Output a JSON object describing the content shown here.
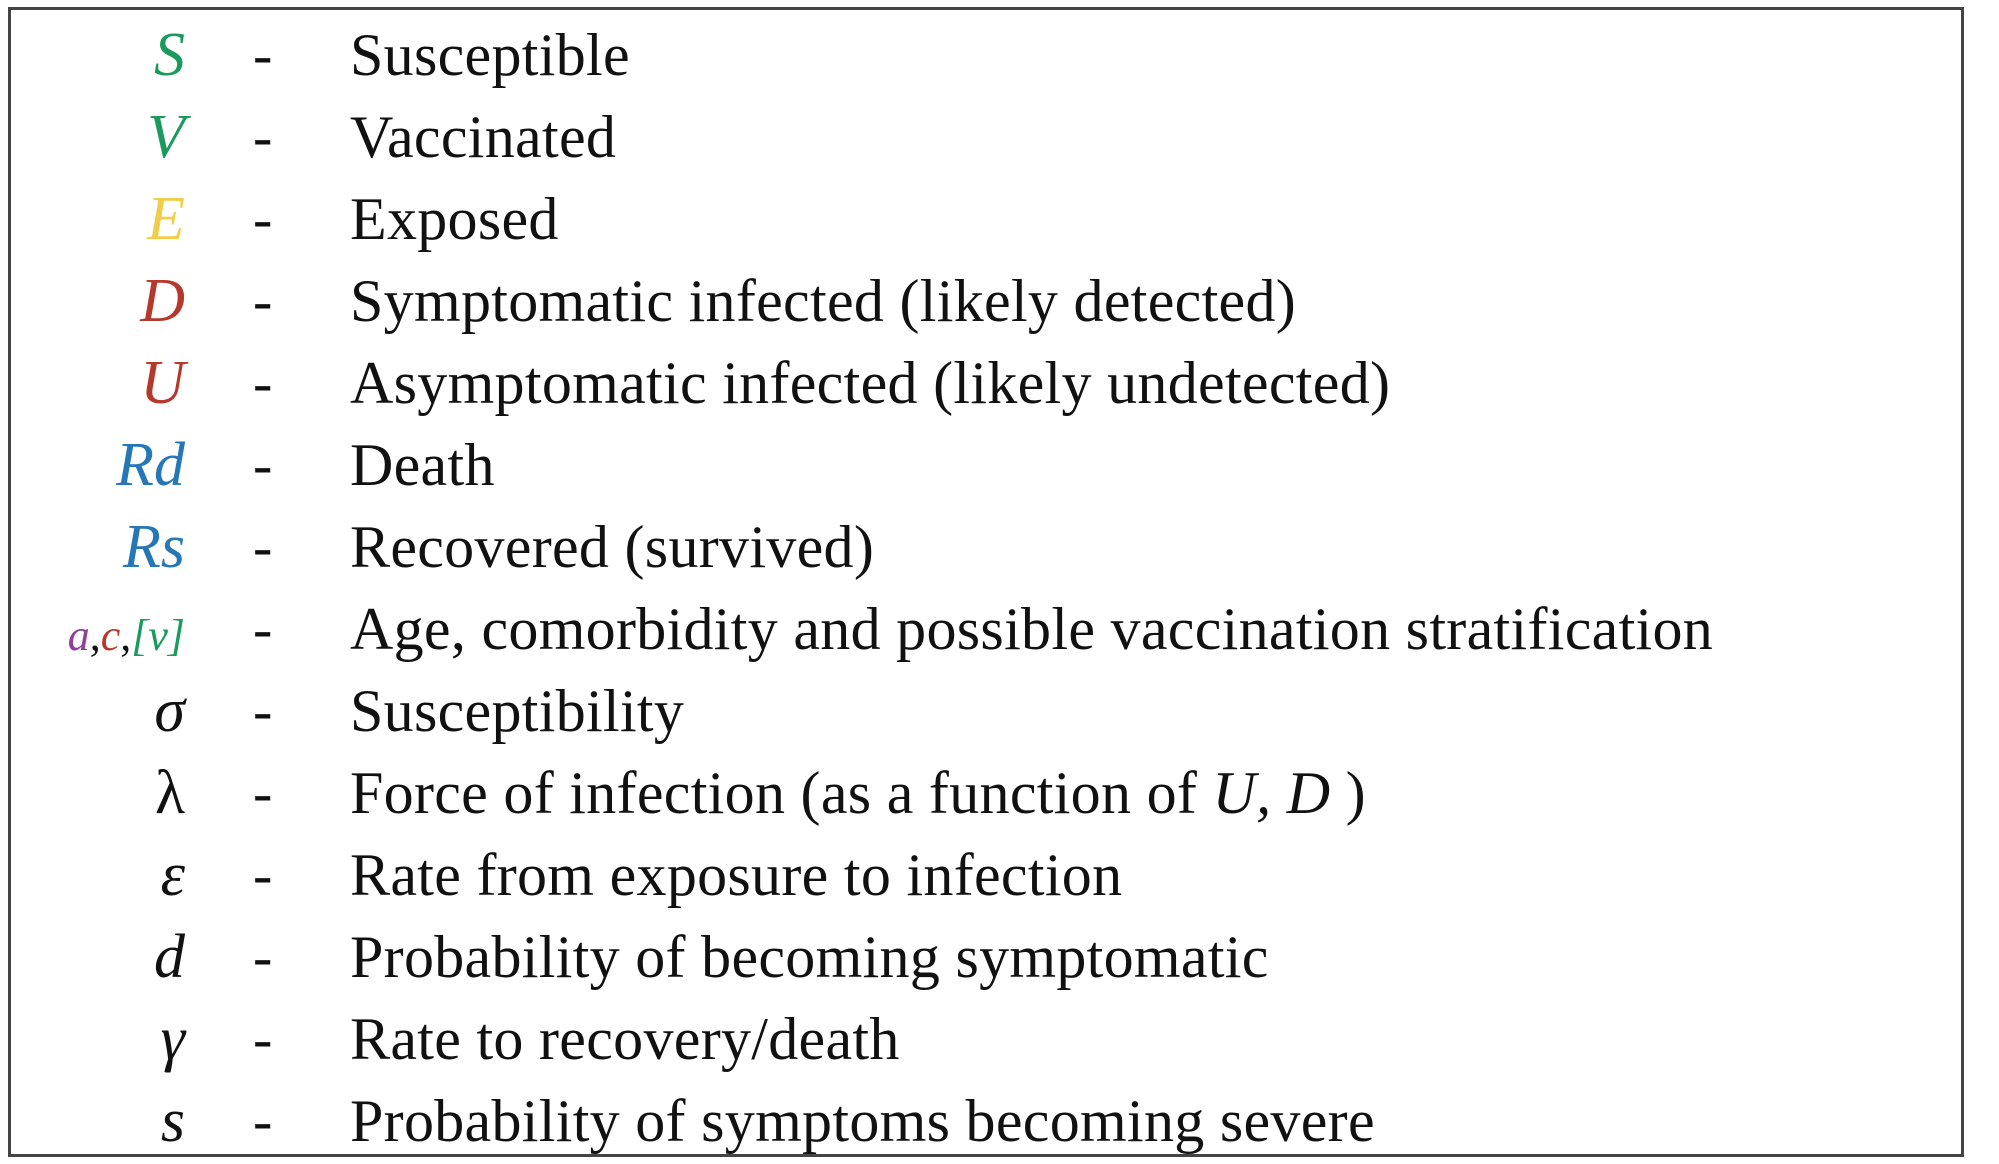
{
  "legend": {
    "rows": [
      {
        "symbol": "S",
        "color": "#1a9a5c",
        "description": "Susceptible"
      },
      {
        "symbol": "V",
        "color": "#1a9a5c",
        "description": "Vaccinated"
      },
      {
        "symbol": "E",
        "color": "#f2cd4a",
        "description": "Exposed"
      },
      {
        "symbol": "D",
        "color": "#b5392b",
        "description": "Symptomatic infected (likely detected)"
      },
      {
        "symbol": "U",
        "color": "#b5392b",
        "description": "Asymptomatic infected (likely undetected)"
      },
      {
        "symbol": "Rd",
        "color": "#2577b8",
        "description": "Death"
      },
      {
        "symbol": "Rs",
        "color": "#2577b8",
        "description": "Recovered (survived)"
      },
      {
        "symbol_parts": [
          {
            "text": "a",
            "color": "#8e3f9c"
          },
          {
            "text": ",",
            "color": "#111111"
          },
          {
            "text": "c",
            "color": "#b5392b"
          },
          {
            "text": ",",
            "color": "#111111"
          },
          {
            "text": "[v]",
            "color": "#1a9a5c"
          }
        ],
        "description": "Age, comorbidity and possible vaccination stratification"
      },
      {
        "symbol": "σ",
        "color": "#111111",
        "description": "Susceptibility"
      },
      {
        "symbol": "λ",
        "color": "#111111",
        "description_pre": "Force of infection (as a function of ",
        "description_vars": "U, D",
        "description_post": " )"
      },
      {
        "symbol": "ε",
        "color": "#111111",
        "description": "Rate from exposure to infection"
      },
      {
        "symbol": "d",
        "color": "#111111",
        "description": "Probability of becoming symptomatic"
      },
      {
        "symbol": "γ",
        "color": "#111111",
        "description": "Rate to recovery/death"
      },
      {
        "symbol": "s",
        "color": "#111111",
        "description": "Probability of symptoms becoming severe"
      }
    ],
    "separator": "-"
  }
}
